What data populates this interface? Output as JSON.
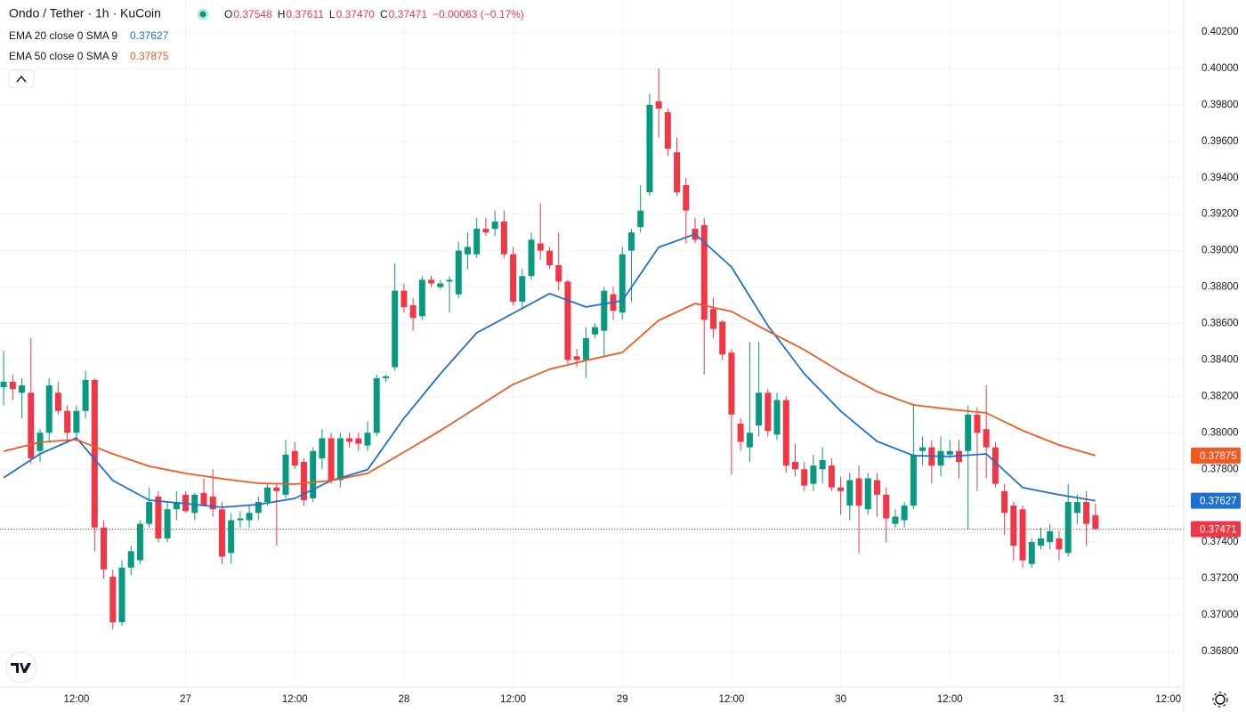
{
  "chart_data": {
    "type": "candlestick",
    "title": "Ondo / Tether · 1h · KuCoin",
    "ohlc_header": [
      {
        "key": "O",
        "label": "0.37548"
      },
      {
        "key": "H",
        "label": "0.37611"
      },
      {
        "key": "L",
        "label": "0.37470"
      },
      {
        "key": "C",
        "label": "0.37471"
      }
    ],
    "change_label": "−0.00063 (−0.17%)",
    "up_color": "#089981",
    "down_color": "#f23645",
    "x": [
      4,
      5,
      6,
      7,
      8,
      9,
      10,
      11,
      12,
      13,
      14,
      15,
      16,
      17,
      18,
      19,
      20,
      21,
      22,
      23,
      24,
      25,
      26,
      27,
      28,
      29,
      30,
      31,
      32,
      33,
      34,
      35,
      36,
      37,
      38,
      39,
      40,
      41,
      42,
      43,
      44,
      45,
      46,
      47,
      48,
      49,
      50,
      51,
      52,
      53,
      54,
      55,
      56,
      57,
      58,
      59,
      60,
      61,
      62,
      63,
      64,
      65,
      66,
      67,
      68,
      69,
      70,
      71,
      72,
      73,
      74,
      75,
      76,
      77,
      78,
      79,
      80,
      81,
      82,
      83,
      84,
      85,
      86,
      87,
      88,
      89,
      90,
      91,
      92,
      93,
      94,
      95,
      96,
      97,
      98,
      99,
      100,
      101,
      102,
      103,
      104,
      105,
      106,
      107,
      108,
      109,
      110,
      111,
      112,
      113,
      114,
      115,
      116,
      117,
      118,
      119,
      120,
      121,
      122,
      123,
      124
    ],
    "open": [
      0.3825,
      0.3828,
      0.3822,
      0.3822,
      0.379,
      0.38,
      0.3822,
      0.3812,
      0.38,
      0.3812,
      0.3829,
      0.3748,
      0.3721,
      0.3696,
      0.3726,
      0.373,
      0.375,
      0.3765,
      0.3742,
      0.3758,
      0.3766,
      0.3756,
      0.3767,
      0.3765,
      0.3758,
      0.3734,
      0.3752,
      0.3752,
      0.3756,
      0.3762,
      0.377,
      0.3766,
      0.379,
      0.3784,
      0.3764,
      0.3786,
      0.3797,
      0.3774,
      0.3797,
      0.3797,
      0.3793,
      0.38,
      0.383,
      0.3836,
      0.3878,
      0.387,
      0.3864,
      0.3884,
      0.388,
      0.3883,
      0.3876,
      0.3898,
      0.3898,
      0.3912,
      0.3912,
      0.3916,
      0.3898,
      0.3872,
      0.3886,
      0.3904,
      0.39,
      0.3892,
      0.3883,
      0.3842,
      0.384,
      0.3854,
      0.3856,
      0.3876,
      0.3866,
      0.39,
      0.3913,
      0.3932,
      0.3982,
      0.3976,
      0.3954,
      0.3936,
      0.3912,
      0.3914,
      0.3868,
      0.3861,
      0.3844,
      0.3805,
      0.3792,
      0.3804,
      0.3822,
      0.3799,
      0.3818,
      0.3784,
      0.378,
      0.3772,
      0.378,
      0.3782,
      0.377,
      0.376,
      0.3775,
      0.3758,
      0.3774,
      0.3766,
      0.375,
      0.3752,
      0.376,
      0.379,
      0.3792,
      0.3782,
      0.3788,
      0.379,
      0.379,
      0.381,
      0.3802,
      0.3792,
      0.3768,
      0.376,
      0.3758,
      0.3728,
      0.3738,
      0.374,
      0.3742,
      0.3734,
      0.3756,
      0.3762,
      0.37548
    ],
    "high": [
      0.3845,
      0.3832,
      0.383,
      0.3852,
      0.3802,
      0.383,
      0.3828,
      0.3815,
      0.3815,
      0.3834,
      0.383,
      0.3752,
      0.3725,
      0.373,
      0.3738,
      0.3752,
      0.377,
      0.3768,
      0.3762,
      0.3768,
      0.3768,
      0.3767,
      0.3775,
      0.378,
      0.3762,
      0.3756,
      0.3757,
      0.376,
      0.3765,
      0.3772,
      0.3772,
      0.3796,
      0.3795,
      0.3786,
      0.3792,
      0.3802,
      0.38,
      0.38,
      0.38,
      0.38,
      0.3806,
      0.3832,
      0.3832,
      0.3893,
      0.3882,
      0.3874,
      0.3886,
      0.3886,
      0.3884,
      0.3886,
      0.3905,
      0.391,
      0.3918,
      0.3918,
      0.3922,
      0.3922,
      0.3902,
      0.389,
      0.391,
      0.3926,
      0.3902,
      0.391,
      0.3884,
      0.3846,
      0.3858,
      0.386,
      0.388,
      0.388,
      0.3902,
      0.3912,
      0.3936,
      0.3986,
      0.4,
      0.3978,
      0.3962,
      0.394,
      0.3918,
      0.3918,
      0.3874,
      0.3862,
      0.3846,
      0.3808,
      0.385,
      0.385,
      0.3824,
      0.3822,
      0.382,
      0.3794,
      0.3784,
      0.3788,
      0.3792,
      0.3786,
      0.3776,
      0.3778,
      0.3782,
      0.3778,
      0.3778,
      0.377,
      0.3758,
      0.3762,
      0.3816,
      0.3798,
      0.3796,
      0.3798,
      0.3796,
      0.3796,
      0.3815,
      0.3814,
      0.3826,
      0.3795,
      0.3772,
      0.3762,
      0.376,
      0.3742,
      0.3748,
      0.375,
      0.3746,
      0.3772,
      0.3766,
      0.3768,
      0.37611
    ],
    "low": [
      0.3815,
      0.3818,
      0.3808,
      0.3783,
      0.3784,
      0.3795,
      0.381,
      0.3795,
      0.3795,
      0.3808,
      0.3735,
      0.372,
      0.3692,
      0.3694,
      0.3722,
      0.3728,
      0.3748,
      0.374,
      0.374,
      0.3752,
      0.3756,
      0.3752,
      0.376,
      0.3754,
      0.3728,
      0.3728,
      0.3748,
      0.3748,
      0.3752,
      0.376,
      0.3738,
      0.3764,
      0.378,
      0.376,
      0.3762,
      0.378,
      0.3772,
      0.377,
      0.3792,
      0.379,
      0.379,
      0.3798,
      0.3828,
      0.3834,
      0.3866,
      0.3856,
      0.3862,
      0.388,
      0.3879,
      0.3866,
      0.3874,
      0.389,
      0.3896,
      0.3908,
      0.3908,
      0.3896,
      0.387,
      0.3868,
      0.3884,
      0.3895,
      0.389,
      0.3878,
      0.3838,
      0.3836,
      0.383,
      0.3852,
      0.3842,
      0.3862,
      0.3862,
      0.3872,
      0.391,
      0.393,
      0.3962,
      0.3952,
      0.393,
      0.3904,
      0.3904,
      0.3832,
      0.3852,
      0.384,
      0.3777,
      0.379,
      0.3784,
      0.3798,
      0.3798,
      0.3796,
      0.3778,
      0.3776,
      0.3768,
      0.3768,
      0.3772,
      0.3768,
      0.3755,
      0.3752,
      0.3734,
      0.3755,
      0.3754,
      0.374,
      0.3748,
      0.3748,
      0.3758,
      0.3782,
      0.3772,
      0.3776,
      0.3786,
      0.3775,
      0.3747,
      0.3768,
      0.3775,
      0.377,
      0.3744,
      0.373,
      0.3726,
      0.3726,
      0.3736,
      0.3736,
      0.373,
      0.3732,
      0.375,
      0.3738,
      0.3747
    ],
    "close": [
      0.3828,
      0.3824,
      0.3826,
      0.3786,
      0.38,
      0.3826,
      0.3812,
      0.38,
      0.3812,
      0.3829,
      0.3748,
      0.3725,
      0.3696,
      0.3726,
      0.3735,
      0.375,
      0.3762,
      0.3742,
      0.3758,
      0.3762,
      0.3757,
      0.3766,
      0.376,
      0.3758,
      0.3732,
      0.3752,
      0.3753,
      0.3756,
      0.3762,
      0.377,
      0.3768,
      0.3788,
      0.3782,
      0.3763,
      0.379,
      0.3797,
      0.3774,
      0.3797,
      0.3795,
      0.3794,
      0.38,
      0.383,
      0.3831,
      0.3878,
      0.3869,
      0.3863,
      0.3884,
      0.3882,
      0.3882,
      0.3884,
      0.39,
      0.3902,
      0.3912,
      0.391,
      0.3916,
      0.3898,
      0.3872,
      0.3886,
      0.3906,
      0.39,
      0.3892,
      0.3883,
      0.384,
      0.384,
      0.3852,
      0.3858,
      0.3878,
      0.3867,
      0.3898,
      0.391,
      0.3922,
      0.398,
      0.3978,
      0.3956,
      0.3932,
      0.3922,
      0.3906,
      0.3862,
      0.3857,
      0.3843,
      0.381,
      0.3795,
      0.38,
      0.3822,
      0.3801,
      0.3818,
      0.3782,
      0.378,
      0.3771,
      0.3782,
      0.3785,
      0.377,
      0.3768,
      0.3774,
      0.376,
      0.3775,
      0.3766,
      0.3753,
      0.3754,
      0.376,
      0.3788,
      0.3792,
      0.3782,
      0.379,
      0.379,
      0.3784,
      0.381,
      0.38,
      0.3792,
      0.3772,
      0.3756,
      0.3738,
      0.373,
      0.374,
      0.3742,
      0.3746,
      0.3736,
      0.3762,
      0.3762,
      0.375,
      0.37471
    ],
    "series": [
      {
        "name": "EMA 20 close 0 SMA 9",
        "color": "#1e6fd0",
        "type": "line",
        "x": [
          4,
          8,
          12,
          16,
          20,
          24,
          28,
          32,
          36,
          40,
          44,
          48,
          52,
          56,
          60,
          64,
          68,
          72,
          76,
          80,
          84,
          88,
          92,
          96,
          100,
          104,
          108,
          112,
          116,
          120,
          124
        ],
        "values": [
          0.37753,
          0.37884,
          0.37972,
          0.37738,
          0.3763,
          0.37611,
          0.37591,
          0.37606,
          0.3764,
          0.37738,
          0.37797,
          0.3808,
          0.38324,
          0.38549,
          0.38656,
          0.38764,
          0.38691,
          0.38725,
          0.39018,
          0.39091,
          0.3891,
          0.38588,
          0.38324,
          0.38119,
          0.37953,
          0.37875,
          0.3787,
          0.37884,
          0.37699,
          0.3766,
          0.37627
        ]
      },
      {
        "name": "EMA 50 close 0 SMA 9",
        "color": "#f4571f",
        "type": "line",
        "x": [
          4,
          8,
          12,
          16,
          20,
          24,
          28,
          32,
          36,
          40,
          44,
          48,
          52,
          56,
          60,
          64,
          68,
          72,
          76,
          80,
          84,
          88,
          92,
          96,
          100,
          104,
          108,
          112,
          116,
          120,
          124
        ],
        "values": [
          0.37899,
          0.37948,
          0.37963,
          0.37884,
          0.37816,
          0.37777,
          0.37748,
          0.37723,
          0.37718,
          0.37738,
          0.37777,
          0.37894,
          0.38012,
          0.38139,
          0.38266,
          0.38349,
          0.38397,
          0.38441,
          0.38617,
          0.3871,
          0.38666,
          0.38559,
          0.38456,
          0.38334,
          0.38226,
          0.38153,
          0.38129,
          0.38109,
          0.38012,
          0.37933,
          0.37875
        ]
      }
    ],
    "xlim": [
      3.6,
      133.7
    ],
    "xticks": [
      {
        "value": 12,
        "label": "12:00"
      },
      {
        "value": 24,
        "label": "27"
      },
      {
        "value": 36,
        "label": "12:00"
      },
      {
        "value": 48,
        "label": "28"
      },
      {
        "value": 60,
        "label": "12:00"
      },
      {
        "value": 72,
        "label": "29"
      },
      {
        "value": 84,
        "label": "12:00"
      },
      {
        "value": 96,
        "label": "30"
      },
      {
        "value": 108,
        "label": "12:00"
      },
      {
        "value": 120,
        "label": "31"
      },
      {
        "value": 132,
        "label": "12:00"
      }
    ],
    "ylim": [
      0.36604,
      0.40376
    ],
    "yticks": [
      {
        "value": 0.368,
        "label": "0.36800"
      },
      {
        "value": 0.37,
        "label": "0.37000"
      },
      {
        "value": 0.372,
        "label": "0.37200"
      },
      {
        "value": 0.374,
        "label": "0.37400"
      },
      {
        "value": 0.376,
        "label": "0.37600"
      },
      {
        "value": 0.378,
        "label": "0.37800"
      },
      {
        "value": 0.38,
        "label": "0.38000"
      },
      {
        "value": 0.382,
        "label": "0.38200"
      },
      {
        "value": 0.384,
        "label": "0.38400"
      },
      {
        "value": 0.386,
        "label": "0.38600"
      },
      {
        "value": 0.388,
        "label": "0.38800"
      },
      {
        "value": 0.39,
        "label": "0.39000"
      },
      {
        "value": 0.392,
        "label": "0.39200"
      },
      {
        "value": 0.394,
        "label": "0.39400"
      },
      {
        "value": 0.396,
        "label": "0.39600"
      },
      {
        "value": 0.398,
        "label": "0.39800"
      },
      {
        "value": 0.4,
        "label": "0.40000"
      },
      {
        "value": 0.402,
        "label": "0.40200"
      }
    ],
    "grid": true
  }
}
